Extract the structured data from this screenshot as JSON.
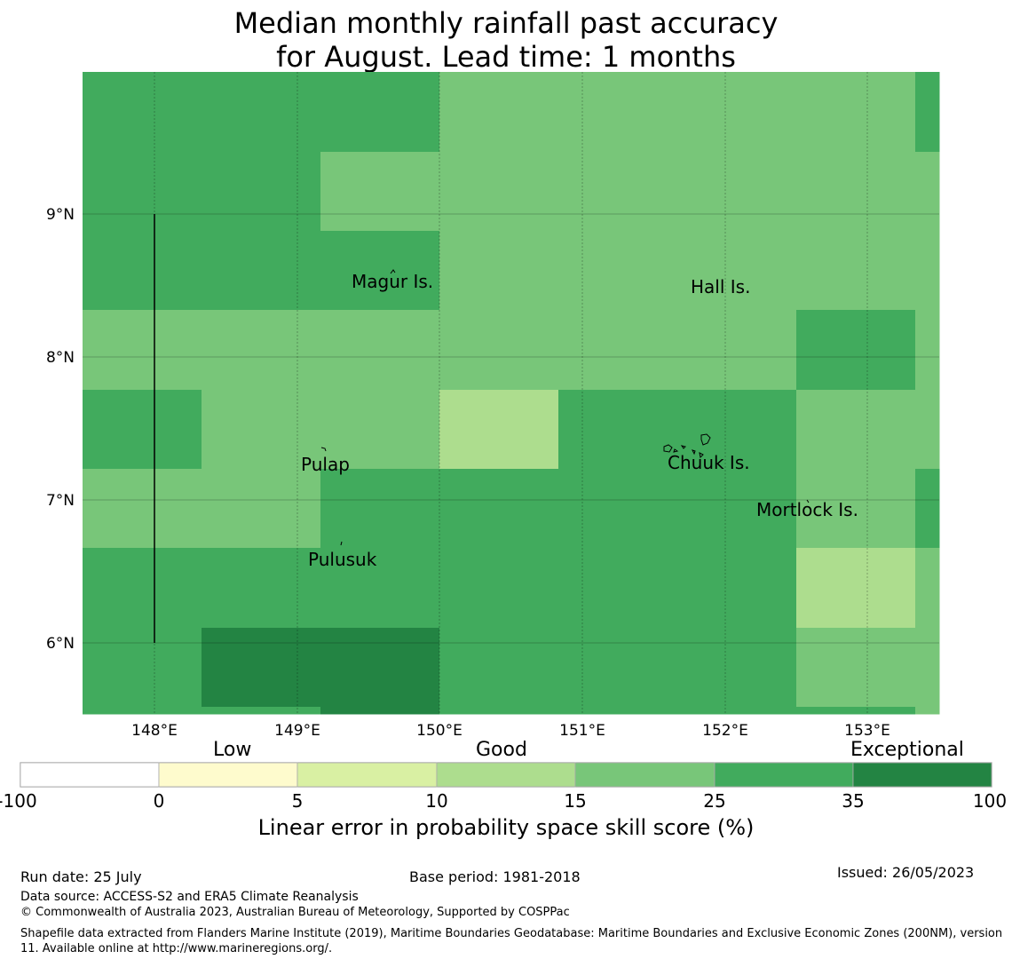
{
  "title_line1": "Median monthly rainfall past accuracy",
  "title_line2": "for August. Lead time: 1 months",
  "map": {
    "x_ticks": [
      "148°E",
      "149°E",
      "150°E",
      "151°E",
      "152°E",
      "153°E"
    ],
    "y_ticks": [
      "9°N",
      "8°N",
      "7°N",
      "6°N"
    ],
    "places": [
      "Magur Is.",
      "Hall Is.",
      "Pulap",
      "Chuuk Is.",
      "Mortlock Is.",
      "Pulusuk"
    ],
    "grid_legend": "rows from north to south; values are colorbar class indices (3 = 15–25, 4 = 25–35, 5 = 35–100, 2 = 10–15)",
    "class_colors": [
      "#ffffff",
      "#fefbcd",
      "#d9f0a3",
      "#addd8e",
      "#78c679",
      "#41ab5d",
      "#238443"
    ]
  },
  "colorbar": {
    "categories": [
      "Low",
      "Good",
      "Exceptional"
    ],
    "ticks": [
      "-100",
      "0",
      "5",
      "10",
      "15",
      "25",
      "35",
      "100"
    ],
    "label": "Linear error in probability space skill score (%)"
  },
  "footer": {
    "run_date": "Run date: 25 July",
    "base_period": "Base period: 1981-2018",
    "issued": "Issued: 26/05/2023",
    "data_source": "Data source: ACCESS-S2 and ERA5 Climate Reanalysis",
    "copyright": "© Commonwealth of Australia 2023, Australian Bureau of Meteorology, Supported by COSPPac",
    "shapefile": "Shapefile data extracted from Flanders Marine Institute (2019), Maritime Boundaries Geodatabase: Maritime Boundaries and Exclusive Economic Zones (200NM), version 11. Available online at http://www.marineregions.org/."
  }
}
